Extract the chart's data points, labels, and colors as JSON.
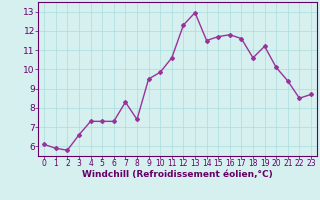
{
  "x": [
    0,
    1,
    2,
    3,
    4,
    5,
    6,
    7,
    8,
    9,
    10,
    11,
    12,
    13,
    14,
    15,
    16,
    17,
    18,
    19,
    20,
    21,
    22,
    23
  ],
  "y": [
    6.1,
    5.9,
    5.8,
    6.6,
    7.3,
    7.3,
    7.3,
    8.3,
    7.4,
    9.5,
    9.85,
    10.6,
    12.3,
    12.95,
    11.5,
    11.7,
    11.8,
    11.6,
    10.6,
    11.2,
    10.1,
    9.4,
    8.5,
    8.7
  ],
  "line_color": "#993399",
  "marker": "D",
  "markersize": 2.0,
  "linewidth": 1.0,
  "xlabel": "Windchill (Refroidissement éolien,°C)",
  "xlabel_fontsize": 6.5,
  "xlim": [
    -0.5,
    23.5
  ],
  "ylim": [
    5.5,
    13.5
  ],
  "yticks": [
    6,
    7,
    8,
    9,
    10,
    11,
    12,
    13
  ],
  "xticks": [
    0,
    1,
    2,
    3,
    4,
    5,
    6,
    7,
    8,
    9,
    10,
    11,
    12,
    13,
    14,
    15,
    16,
    17,
    18,
    19,
    20,
    21,
    22,
    23
  ],
  "xtick_fontsize": 5.5,
  "ytick_fontsize": 6.5,
  "bg_color": "#d6f0f0",
  "grid_color": "#aadddd",
  "title_color": "#660066",
  "spine_color": "#660066"
}
